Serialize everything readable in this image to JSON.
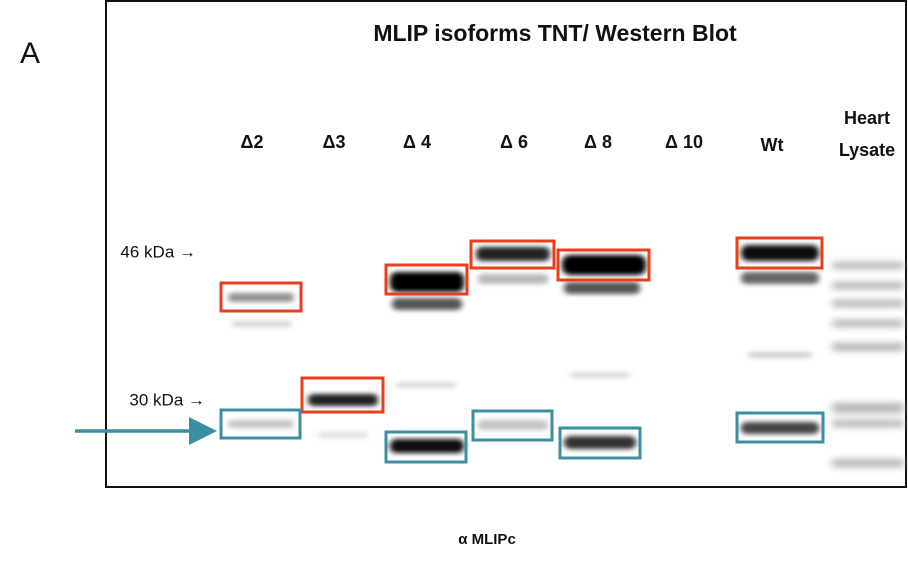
{
  "panel_label": "A",
  "title": "MLIP isoforms TNT/ Western Blot",
  "lanes": [
    "Δ2",
    "Δ3",
    "Δ 4",
    "Δ 6",
    "Δ 8",
    "Δ 10",
    "Wt",
    [
      "Heart",
      "Lysate"
    ]
  ],
  "markers": [
    "46 kDa →",
    "30 kDa →"
  ],
  "antibody": "α MLIPc"
}
